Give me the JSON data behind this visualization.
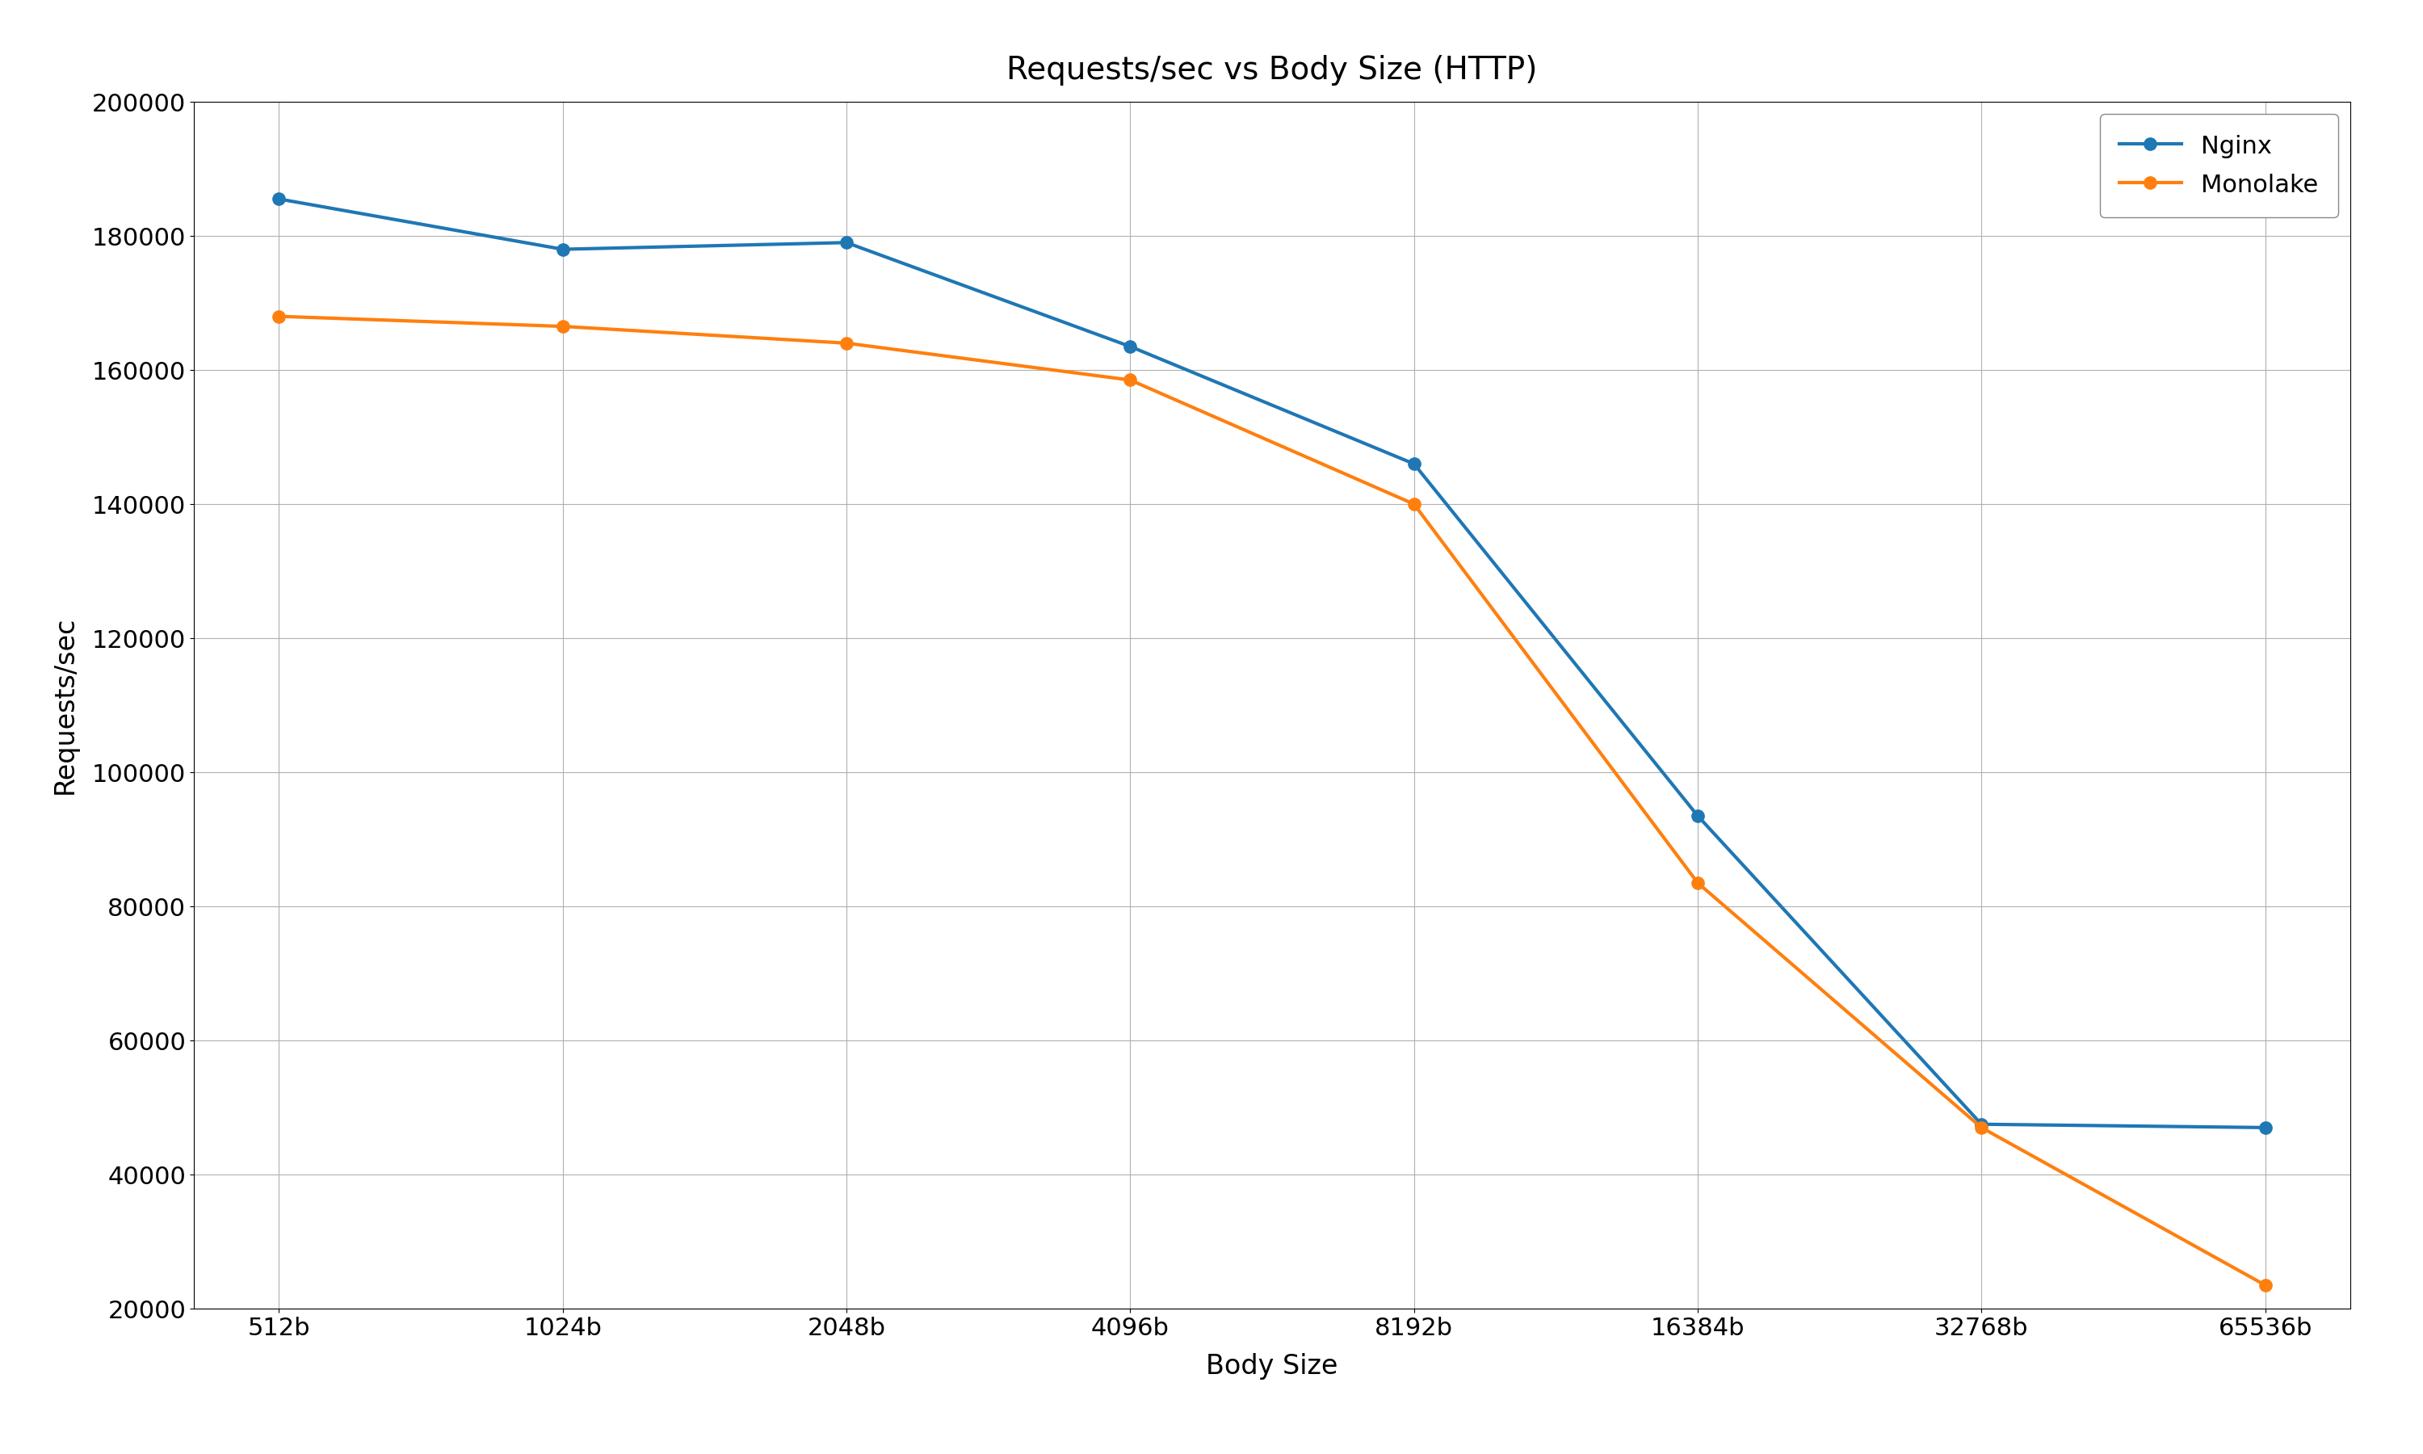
{
  "title": "Requests/sec vs Body Size (HTTP)",
  "xlabel": "Body Size",
  "ylabel": "Requests/sec",
  "x_labels": [
    "512b",
    "1024b",
    "2048b",
    "4096b",
    "8192b",
    "16384b",
    "32768b",
    "65536b"
  ],
  "nginx": [
    185500,
    178000,
    179000,
    163500,
    146000,
    93500,
    47500,
    47000
  ],
  "monolake": [
    168000,
    166500,
    164000,
    158500,
    140000,
    83500,
    47000,
    23500
  ],
  "nginx_color": "#1f77b4",
  "monolake_color": "#ff7f0e",
  "background_color": "#ffffff",
  "grid_color": "#b0b0b0",
  "ylim": [
    20000,
    200000
  ],
  "y_ticks": [
    20000,
    40000,
    60000,
    80000,
    100000,
    120000,
    140000,
    160000,
    180000,
    200000
  ],
  "title_fontsize": 28,
  "label_fontsize": 24,
  "tick_fontsize": 22,
  "legend_fontsize": 22,
  "line_width": 3,
  "marker": "o",
  "marker_size": 11
}
